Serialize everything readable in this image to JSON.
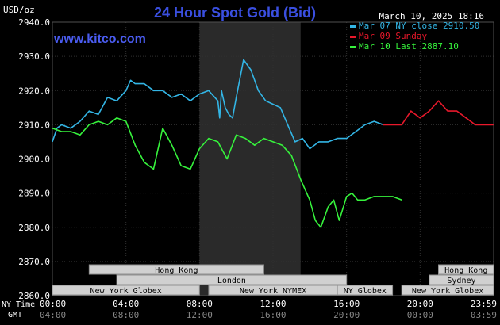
{
  "chart_data": {
    "type": "line",
    "title": "24 Hour Spot Gold (Bid)",
    "unit_label": "USD/oz",
    "website": "www.kitco.com",
    "timestamp": "March 10, 2025 18:16",
    "ylim": [
      2860,
      2940
    ],
    "y_ticks": [
      "2940.0",
      "2930.0",
      "2920.0",
      "2910.0",
      "2900.0",
      "2890.0",
      "2880.0",
      "2870.0",
      "2860.0"
    ],
    "x_range_hours": [
      0,
      24
    ],
    "x_ticks_ny": [
      "00:00",
      "04:00",
      "08:00",
      "12:00",
      "16:00",
      "20:00",
      "23:59"
    ],
    "x_ticks_gmt": [
      "04:00",
      "08:00",
      "12:00",
      "16:00",
      "20:00",
      "00:00",
      "03:59"
    ],
    "row_labels": {
      "ny": "NY Time",
      "gmt": "GMT"
    },
    "grid": true,
    "legend_position": "top-right",
    "highlight_hours": [
      8,
      13.5
    ],
    "series": [
      {
        "name": "Mar 07 NY close 2910.50",
        "color": "#33b5e5",
        "x": [
          0,
          0.25,
          0.5,
          1,
          1.5,
          2,
          2.5,
          3,
          3.5,
          4,
          4.25,
          4.5,
          5,
          5.5,
          6,
          6.5,
          7,
          7.5,
          8,
          8.5,
          9,
          9.1,
          9.2,
          9.4,
          9.6,
          9.8,
          10,
          10.4,
          10.8,
          11.2,
          11.6,
          12,
          12.4,
          12.8,
          13.2,
          13.6,
          14,
          14.5,
          15,
          15.5,
          16,
          16.5,
          17,
          17.5,
          18
        ],
        "y": [
          2905,
          2909,
          2910,
          2909,
          2911,
          2914,
          2913,
          2918,
          2917,
          2920,
          2923,
          2922,
          2922,
          2920,
          2920,
          2918,
          2919,
          2917,
          2919,
          2920,
          2917,
          2912,
          2920,
          2915,
          2913,
          2912,
          2918,
          2929,
          2926,
          2920,
          2917,
          2916,
          2915,
          2910,
          2905,
          2906,
          2903,
          2905,
          2905,
          2906,
          2906,
          2908,
          2910,
          2911,
          2910
        ]
      },
      {
        "name": "Mar 09 Sunday",
        "color": "#e8182b",
        "x": [
          18,
          19,
          19.5,
          20,
          20.5,
          21,
          21.5,
          22,
          22.5,
          23,
          23.5,
          23.99
        ],
        "y": [
          2910,
          2910,
          2914,
          2912,
          2914,
          2917,
          2914,
          2914,
          2912,
          2910,
          2910,
          2910
        ]
      },
      {
        "name": "Mar 10 Last 2887.10",
        "color": "#36f23c",
        "x": [
          0,
          0.5,
          1,
          1.5,
          2,
          2.5,
          3,
          3.5,
          4,
          4.5,
          5,
          5.5,
          6,
          6.5,
          7,
          7.5,
          8,
          8.5,
          9,
          9.5,
          10,
          10.5,
          11,
          11.5,
          12,
          12.5,
          13,
          13.5,
          14,
          14.3,
          14.6,
          15,
          15.3,
          15.6,
          16,
          16.3,
          16.6,
          17,
          17.5,
          18,
          18.5,
          19
        ],
        "y": [
          2909,
          2908,
          2908,
          2907,
          2910,
          2911,
          2910,
          2912,
          2911,
          2904,
          2899,
          2897,
          2909,
          2904,
          2898,
          2897,
          2903,
          2906,
          2905,
          2900,
          2907,
          2906,
          2904,
          2906,
          2905,
          2904,
          2901,
          2894,
          2888,
          2882,
          2880,
          2886,
          2888,
          2882,
          2889,
          2890,
          2888,
          2888,
          2889,
          2889,
          2889,
          2888
        ]
      }
    ]
  },
  "session_bars": [
    {
      "name": "Hong Kong",
      "start": 2,
      "end": 11.5,
      "row": 0
    },
    {
      "name": "Hong Kong",
      "start": 21,
      "end": 24,
      "row": 0
    },
    {
      "name": "London",
      "start": 3.5,
      "end": 16,
      "row": 1
    },
    {
      "name": "Sydney",
      "start": 20.5,
      "end": 24,
      "row": 1
    },
    {
      "name": "New York Globex",
      "start": 0,
      "end": 8,
      "row": 2
    },
    {
      "name": "New York NYMEX",
      "start": 8.5,
      "end": 15.5,
      "row": 2
    },
    {
      "name": "NY Globex",
      "start": 15.5,
      "end": 18.5,
      "row": 2
    },
    {
      "name": "New York Globex",
      "start": 19,
      "end": 24,
      "row": 2
    }
  ],
  "colors": {
    "background": "#000000",
    "highlight": "#2a2a2a",
    "grid": "#303030",
    "title": "#3a4fe0",
    "website": "#4a5cf0",
    "text": "#ffffff",
    "bar_fill": "#d0d0d0",
    "bar_stroke": "#909090"
  }
}
